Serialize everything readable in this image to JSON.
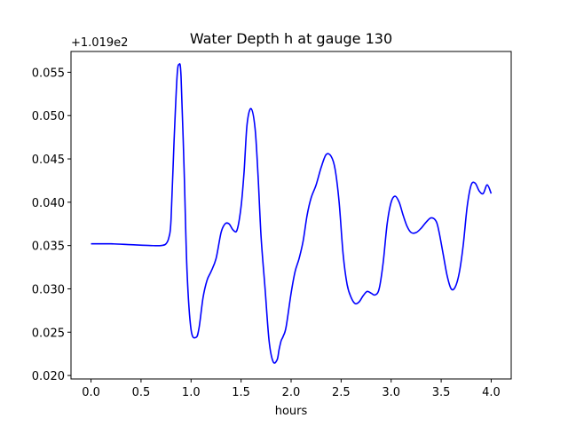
{
  "chart_data": {
    "type": "line",
    "title": "Water Depth h at gauge 130",
    "xlabel": "hours",
    "ylabel": "",
    "y_offset_label": "+1.019e2",
    "xlim": [
      -0.2,
      4.2
    ],
    "ylim": [
      0.0196,
      0.0574
    ],
    "xticks": [
      0.0,
      0.5,
      1.0,
      1.5,
      2.0,
      2.5,
      3.0,
      3.5,
      4.0
    ],
    "xtick_labels": [
      "0.0",
      "0.5",
      "1.0",
      "1.5",
      "2.0",
      "2.5",
      "3.0",
      "3.5",
      "4.0"
    ],
    "yticks": [
      0.02,
      0.025,
      0.03,
      0.035,
      0.04,
      0.045,
      0.05,
      0.055
    ],
    "ytick_labels": [
      "0.020",
      "0.025",
      "0.030",
      "0.035",
      "0.040",
      "0.045",
      "0.050",
      "0.055"
    ],
    "grid": false,
    "series": [
      {
        "color": "#0000ff",
        "x": [
          0.0,
          0.2,
          0.4,
          0.6,
          0.7,
          0.75,
          0.78,
          0.8,
          0.83,
          0.86,
          0.88,
          0.9,
          0.93,
          0.96,
          1.0,
          1.05,
          1.08,
          1.12,
          1.16,
          1.2,
          1.25,
          1.3,
          1.34,
          1.38,
          1.42,
          1.46,
          1.5,
          1.53,
          1.56,
          1.6,
          1.64,
          1.67,
          1.7,
          1.74,
          1.78,
          1.82,
          1.86,
          1.88,
          1.9,
          1.92,
          1.95,
          2.0,
          2.04,
          2.08,
          2.12,
          2.16,
          2.2,
          2.25,
          2.3,
          2.35,
          2.4,
          2.44,
          2.48,
          2.52,
          2.56,
          2.6,
          2.64,
          2.68,
          2.72,
          2.76,
          2.8,
          2.84,
          2.88,
          2.92,
          2.96,
          3.0,
          3.04,
          3.08,
          3.12,
          3.16,
          3.2,
          3.25,
          3.3,
          3.35,
          3.4,
          3.45,
          3.48,
          3.52,
          3.56,
          3.6,
          3.64,
          3.68,
          3.72,
          3.76,
          3.8,
          3.84,
          3.88,
          3.92,
          3.96,
          4.0
        ],
        "y": [
          0.0352,
          0.0352,
          0.0351,
          0.035,
          0.035,
          0.0352,
          0.036,
          0.038,
          0.047,
          0.0545,
          0.0559,
          0.0545,
          0.044,
          0.032,
          0.0253,
          0.0244,
          0.0255,
          0.029,
          0.031,
          0.032,
          0.0335,
          0.0365,
          0.0375,
          0.0375,
          0.0368,
          0.0368,
          0.0395,
          0.0435,
          0.049,
          0.0508,
          0.0485,
          0.043,
          0.036,
          0.03,
          0.024,
          0.0216,
          0.0218,
          0.023,
          0.024,
          0.0245,
          0.0256,
          0.0295,
          0.032,
          0.0335,
          0.0355,
          0.0385,
          0.0405,
          0.042,
          0.044,
          0.0455,
          0.0453,
          0.0438,
          0.04,
          0.034,
          0.0305,
          0.029,
          0.0283,
          0.0285,
          0.0292,
          0.0297,
          0.0295,
          0.0293,
          0.03,
          0.033,
          0.0375,
          0.04,
          0.0407,
          0.04,
          0.0385,
          0.0372,
          0.0365,
          0.0365,
          0.037,
          0.0377,
          0.0382,
          0.0378,
          0.0365,
          0.034,
          0.0315,
          0.03,
          0.0302,
          0.0318,
          0.035,
          0.0395,
          0.042,
          0.0422,
          0.0413,
          0.041,
          0.042,
          0.041
        ]
      }
    ]
  }
}
